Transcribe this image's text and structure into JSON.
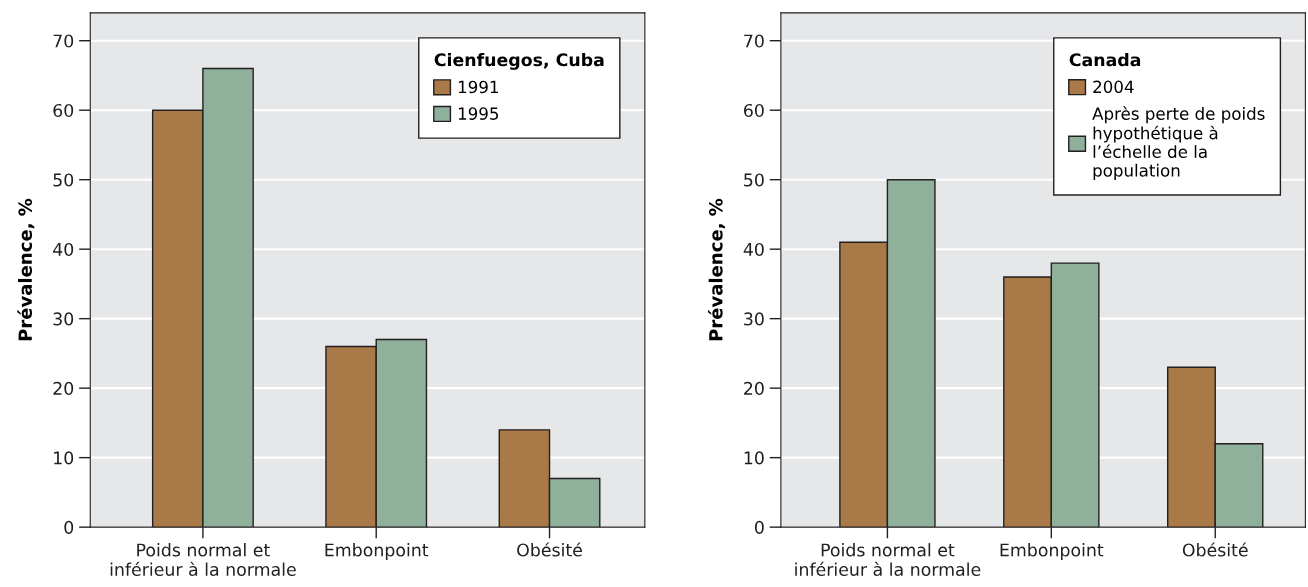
{
  "chart_data": [
    {
      "type": "bar",
      "ylabel": "Prévalence, %",
      "legend_title": "Cienfuegos, Cuba",
      "legend": "top right",
      "grid": "y",
      "categories": [
        "Poids normal et\ninférieur à la normale",
        "Embonpoint",
        "Obésité"
      ],
      "series": [
        {
          "name": "1991",
          "color": "#a97a48",
          "values": [
            60,
            26,
            14
          ]
        },
        {
          "name": "1995",
          "color": "#8fb09b",
          "values": [
            66,
            27,
            7
          ]
        }
      ],
      "ylim": [
        0,
        74
      ],
      "yticks": [
        0,
        10,
        20,
        30,
        40,
        50,
        60,
        70
      ]
    },
    {
      "type": "bar",
      "ylabel": "Prévalence, %",
      "legend_title": "Canada",
      "legend": "top right",
      "grid": "y",
      "categories": [
        "Poids normal et\ninférieur à la normale",
        "Embonpoint",
        "Obésité"
      ],
      "series": [
        {
          "name": "2004",
          "color": "#a97a48",
          "values": [
            41,
            36,
            23
          ]
        },
        {
          "name": "Après perte de poids\nhypothétique à\nl’échelle de la\npopulation",
          "color": "#8fb09b",
          "values": [
            50,
            38,
            12
          ]
        }
      ],
      "ylim": [
        0,
        74
      ],
      "yticks": [
        0,
        10,
        20,
        30,
        40,
        50,
        60,
        70
      ]
    }
  ]
}
